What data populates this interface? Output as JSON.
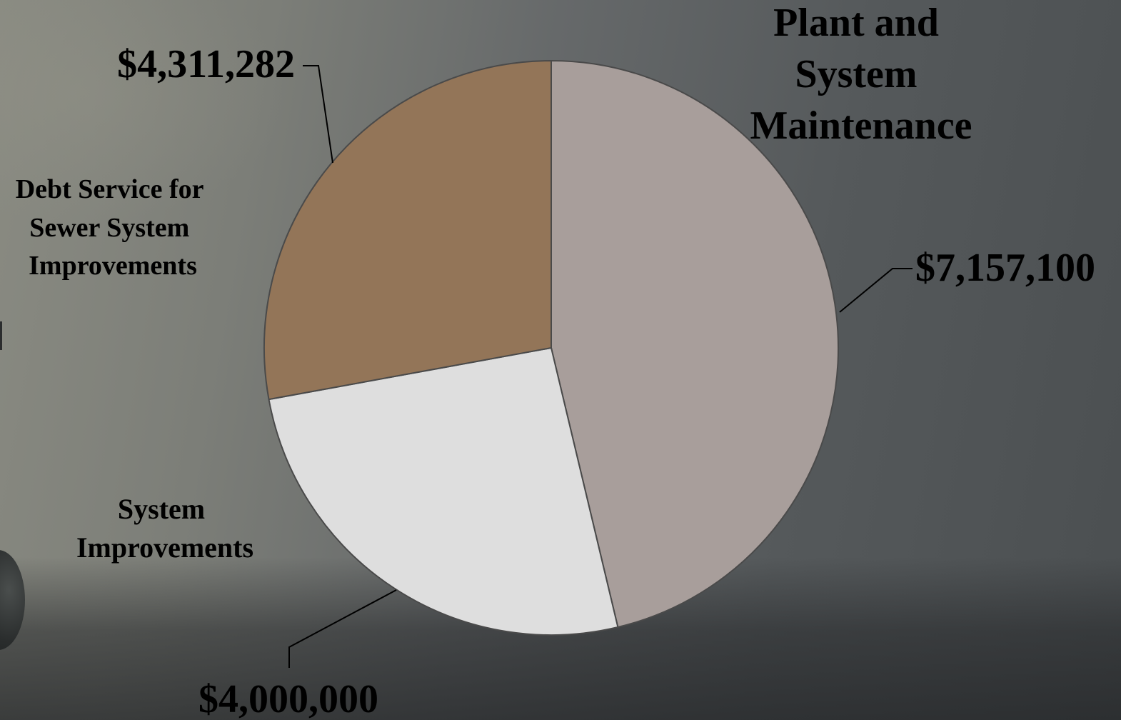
{
  "chart_data": {
    "type": "pie",
    "slices": [
      {
        "name": "Plant and System Maintenance",
        "value": 7157100,
        "value_label": "$7,157,100",
        "color": "#a89e9b"
      },
      {
        "name": "System Improvements",
        "value": 4000000,
        "value_label": "$4,000,000",
        "color": "#dedede"
      },
      {
        "name": "Debt Service for Sewer System Improvements",
        "value": 4311282,
        "value_label": "$4,311,282",
        "color": "#937558"
      }
    ],
    "category_labels": [
      [
        "Plant and",
        "System",
        "Maintenance"
      ],
      [
        "System",
        "Improvements"
      ],
      [
        "Debt Service for",
        "Sewer System",
        "Improvements"
      ]
    ],
    "start_angle": "12 o'clock",
    "direction": "clockwise",
    "legend": "none"
  }
}
